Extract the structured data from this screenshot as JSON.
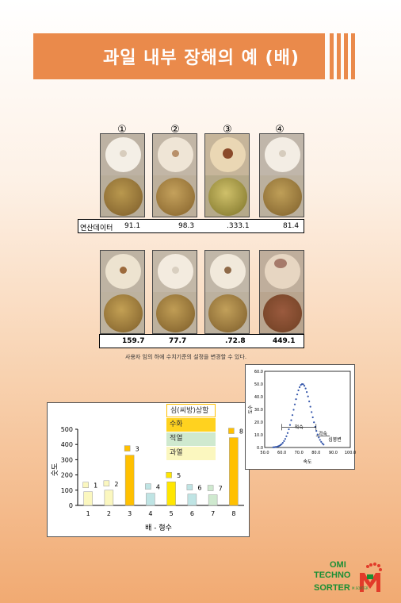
{
  "title": "과일 내부 장해의 예 (배)",
  "sample_numbers": [
    "①",
    "②",
    "③",
    "④"
  ],
  "row1": {
    "label": "연산데이터",
    "values": [
      "91.1",
      "98.3",
      ".333.1",
      "81.4"
    ]
  },
  "row2": {
    "values": [
      "159.7",
      "77.7",
      ".72.8",
      "449.1"
    ]
  },
  "note": "사용자 임의 하에 수치기준의 설정을 변경할 수 있다.",
  "legend": [
    {
      "label": "심(씨방)상할",
      "color": "#ffffff"
    },
    {
      "label": "수화",
      "color": "#ffd21f"
    },
    {
      "label": "적열",
      "color": "#cfe9cf"
    },
    {
      "label": "과열",
      "color": "#fbf7bf"
    }
  ],
  "chart_data": [
    {
      "type": "bar",
      "categories": [
        "1",
        "2",
        "3",
        "4",
        "5",
        "6",
        "7",
        "8"
      ],
      "values": [
        90,
        100,
        330,
        80,
        155,
        75,
        70,
        445
      ],
      "bar_labels": [
        "1",
        "2",
        "3",
        "4",
        "5",
        "6",
        "7",
        "8"
      ],
      "bar_colors": [
        "#fbf7bf",
        "#fbf7bf",
        "#ffc000",
        "#bfe4e4",
        "#ffe600",
        "#bfe4e4",
        "#cfe9cf",
        "#ffc000"
      ],
      "ylabel": "숫도",
      "xlabel": "배 - 형수",
      "yticks": [
        "0",
        "100",
        "200",
        "300",
        "400",
        "500"
      ],
      "ylim": [
        0,
        500
      ]
    },
    {
      "type": "scatter",
      "xlabel": "속도",
      "ylabel": "도수",
      "xticks": [
        "50.0",
        "60.0",
        "70.0",
        "80.0",
        "90.0",
        "100.0"
      ],
      "yticks": [
        "0.0",
        "10.0",
        "20.0",
        "30.0",
        "40.0",
        "50.0",
        "60.0"
      ],
      "xlim": [
        50,
        100
      ],
      "ylim": [
        0,
        60
      ],
      "annotations": [
        "적숙",
        "과숙",
        "심붕변"
      ],
      "bell_peak_x": 72,
      "bell_peak_y": 50,
      "bell_sigma": 5
    }
  ],
  "logo": {
    "line1": "OMI",
    "line2": "TECHNO",
    "line3": "SORTER",
    "mark_sub": "M.SORTER"
  }
}
